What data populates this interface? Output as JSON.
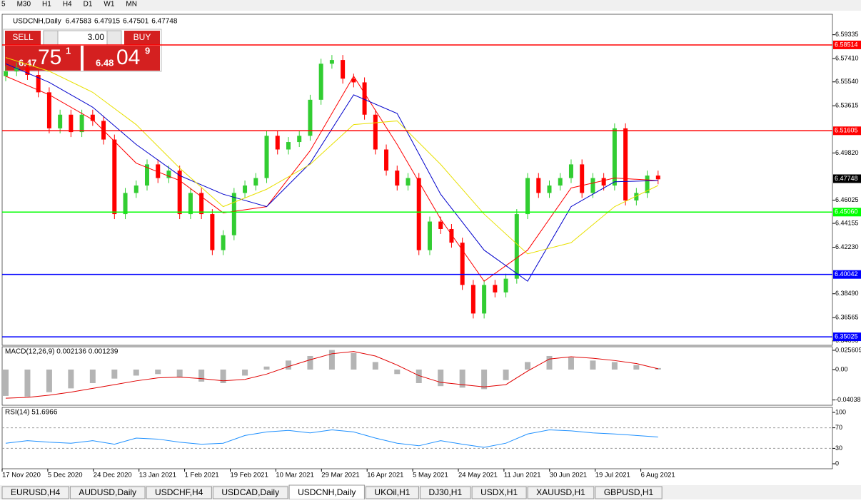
{
  "toolbar": {
    "timeframes": [
      "5",
      "M30",
      "H1",
      "H4",
      "D1",
      "W1",
      "MN"
    ]
  },
  "trade_panel": {
    "sell": "SELL",
    "buy": "BUY",
    "lot": "3.00",
    "sell_price": [
      "6.47",
      "75",
      "1"
    ],
    "buy_price": [
      "6.48",
      "04",
      "9"
    ]
  },
  "tabs": [
    "EURUSD,H4",
    "AUDUSD,Daily",
    "USDCHF,H4",
    "USDCAD,Daily",
    "USDCNH,Daily",
    "UKOil,H1",
    "DJ30,H1",
    "USDX,H1",
    "XAUUSD,H1",
    "GBPUSD,H1"
  ],
  "active_tab": "USDCNH,Daily",
  "chart_data": {
    "type": "candlestick",
    "symbol": "USDCNH,Daily",
    "quote": [
      6.47583,
      6.47915,
      6.47501,
      6.47748
    ],
    "ylim": [
      6.3434,
      6.6098
    ],
    "yticks": [
      6.59335,
      {
        "value": 6.5741,
        "label": "6.57410"
      },
      {
        "value": 6.5554,
        "label": "6.55540"
      },
      6.53615,
      {
        "value": 6.4982,
        "label": "6.49820"
      },
      6.46025,
      6.44155,
      {
        "value": 6.4223,
        "label": "6.42230"
      },
      {
        "value": 6.3849,
        "label": "6.38490"
      },
      6.36565,
      6.34695
    ],
    "x_labels": [
      "17 Nov 2020",
      "5 Dec 2020",
      "24 Dec 2020",
      "13 Jan 2021",
      "1 Feb 2021",
      "19 Feb 2021",
      "10 Mar 2021",
      "29 Mar 2021",
      "16 Apr 2021",
      "5 May 2021",
      "24 May 2021",
      "11 Jun 2021",
      "30 Jun 2021",
      "19 Jul 2021",
      "6 Aug 2021"
    ],
    "up_color": "#32cd32",
    "down_color": "#ff0000",
    "open": [
      6.56,
      6.564,
      6.567,
      6.561,
      6.547,
      6.518,
      6.529,
      6.515,
      6.529,
      6.524,
      6.509,
      6.449,
      6.466,
      6.472,
      6.489,
      6.478,
      6.484,
      6.449,
      6.466,
      6.449,
      6.42,
      6.432,
      6.466,
      6.472,
      6.478,
      6.512,
      6.501,
      6.507,
      6.512,
      6.541,
      6.57,
      6.573,
      6.558,
      6.555,
      6.529,
      6.501,
      6.484,
      6.472,
      6.478,
      6.42,
      6.443,
      6.437,
      6.426,
      6.392,
      6.369,
      6.392,
      6.386,
      6.397,
      6.449,
      6.478,
      6.466,
      6.472,
      6.478,
      6.489,
      6.466,
      6.478,
      6.472,
      6.518,
      6.46,
      6.466,
      6.48
    ],
    "high": [
      6.568,
      6.571,
      6.571,
      6.565,
      6.551,
      6.533,
      6.533,
      6.533,
      6.533,
      6.528,
      6.513,
      6.47,
      6.476,
      6.493,
      6.493,
      6.488,
      6.488,
      6.47,
      6.47,
      6.453,
      6.436,
      6.47,
      6.476,
      6.482,
      6.516,
      6.516,
      6.511,
      6.516,
      6.545,
      6.574,
      6.577,
      6.577,
      6.562,
      6.559,
      6.533,
      6.505,
      6.488,
      6.482,
      6.482,
      6.447,
      6.447,
      6.441,
      6.43,
      6.396,
      6.396,
      6.396,
      6.401,
      6.453,
      6.482,
      6.482,
      6.476,
      6.482,
      6.493,
      6.493,
      6.482,
      6.482,
      6.522,
      6.522,
      6.47,
      6.484,
      6.484
    ],
    "low": [
      6.556,
      6.56,
      6.557,
      6.543,
      6.514,
      6.514,
      6.511,
      6.511,
      6.52,
      6.505,
      6.445,
      6.445,
      6.462,
      6.468,
      6.474,
      6.474,
      6.445,
      6.445,
      6.445,
      6.416,
      6.416,
      6.428,
      6.462,
      6.468,
      6.474,
      6.497,
      6.497,
      6.503,
      6.508,
      6.537,
      6.566,
      6.554,
      6.551,
      6.525,
      6.497,
      6.48,
      6.468,
      6.468,
      6.416,
      6.416,
      6.433,
      6.422,
      6.388,
      6.365,
      6.365,
      6.382,
      6.382,
      6.393,
      6.445,
      6.462,
      6.462,
      6.468,
      6.474,
      6.462,
      6.462,
      6.468,
      6.468,
      6.456,
      6.456,
      6.462,
      6.473
    ],
    "close": [
      6.564,
      6.567,
      6.561,
      6.547,
      6.518,
      6.529,
      6.515,
      6.529,
      6.524,
      6.509,
      6.449,
      6.466,
      6.472,
      6.489,
      6.478,
      6.484,
      6.449,
      6.466,
      6.449,
      6.42,
      6.432,
      6.466,
      6.472,
      6.478,
      6.512,
      6.501,
      6.507,
      6.512,
      6.541,
      6.57,
      6.573,
      6.558,
      6.555,
      6.529,
      6.501,
      6.484,
      6.472,
      6.478,
      6.42,
      6.443,
      6.437,
      6.426,
      6.392,
      6.369,
      6.392,
      6.386,
      6.397,
      6.449,
      6.478,
      6.466,
      6.472,
      6.478,
      6.489,
      6.466,
      6.478,
      6.472,
      6.518,
      6.46,
      6.466,
      6.48,
      6.477
    ],
    "ma_index": [
      0,
      4,
      8,
      12,
      16,
      20,
      24,
      28,
      32,
      36,
      40,
      44,
      48,
      52,
      56,
      60
    ],
    "ma": [
      {
        "color": "#ff0000",
        "values": [
          6.56,
          6.545,
          6.525,
          6.49,
          6.476,
          6.45,
          6.455,
          6.5,
          6.56,
          6.505,
          6.445,
          6.395,
          6.42,
          6.47,
          6.478,
          6.476
        ]
      },
      {
        "color": "#0000cc",
        "values": [
          6.57,
          6.555,
          6.535,
          6.505,
          6.48,
          6.465,
          6.455,
          6.49,
          6.545,
          6.53,
          6.465,
          6.42,
          6.395,
          6.455,
          6.475,
          6.476
        ]
      },
      {
        "color": "#e8e000",
        "values": [
          6.575,
          6.564,
          6.547,
          6.521,
          6.486,
          6.455,
          6.469,
          6.489,
          6.521,
          6.524,
          6.489,
          6.449,
          6.417,
          6.426,
          6.455,
          6.472
        ]
      }
    ],
    "levels": [
      {
        "value": 6.58514,
        "label": "6.58514",
        "color": "#ff0000"
      },
      {
        "value": 6.51605,
        "label": "6.51605",
        "color": "#ff0000"
      },
      {
        "value": 6.4506,
        "label": "6.45060",
        "color": "#00ff00"
      },
      {
        "value": 6.40042,
        "label": "6.40042",
        "color": "#0000ff"
      },
      {
        "value": 6.35025,
        "label": "6.35025",
        "color": "#0000ff"
      }
    ],
    "current_price": 6.47748,
    "macd": {
      "title": "MACD(12,26,9) 0.002136 0.001239",
      "ylim": [
        -0.0474,
        0.0303
      ],
      "yticks": [
        0.025609,
        {
          "value": 0,
          "label": "0.00"
        },
        -0.04038
      ],
      "index": [
        0,
        2,
        4,
        6,
        8,
        10,
        12,
        14,
        16,
        18,
        20,
        22,
        24,
        26,
        28,
        30,
        32,
        34,
        36,
        38,
        40,
        42,
        44,
        46,
        48,
        50,
        52,
        54,
        56,
        58,
        60
      ],
      "histogram": [
        -0.035,
        -0.036,
        -0.03,
        -0.025,
        -0.018,
        -0.012,
        -0.008,
        -0.006,
        -0.01,
        -0.016,
        -0.018,
        -0.008,
        0.004,
        0.012,
        0.018,
        0.026,
        0.022,
        0.01,
        -0.006,
        -0.018,
        -0.022,
        -0.024,
        -0.026,
        -0.014,
        0.01,
        0.018,
        0.016,
        0.012,
        0.01,
        0.006,
        0.002
      ],
      "signal": [
        -0.038,
        -0.037,
        -0.034,
        -0.03,
        -0.025,
        -0.02,
        -0.015,
        -0.011,
        -0.01,
        -0.012,
        -0.015,
        -0.013,
        -0.006,
        0.004,
        0.013,
        0.021,
        0.024,
        0.018,
        0.006,
        -0.008,
        -0.017,
        -0.02,
        -0.023,
        -0.02,
        -0.002,
        0.014,
        0.017,
        0.015,
        0.012,
        0.008,
        0.001
      ]
    },
    "rsi": {
      "title": "RSI(14) 51.6966",
      "ylim": [
        -9.7,
        109.7
      ],
      "yticks": [
        100,
        70,
        30,
        0
      ],
      "levels": [
        70,
        30
      ],
      "index": [
        0,
        2,
        4,
        6,
        8,
        10,
        12,
        14,
        16,
        18,
        20,
        22,
        24,
        26,
        28,
        30,
        32,
        34,
        36,
        38,
        40,
        42,
        44,
        46,
        48,
        50,
        52,
        54,
        56,
        58,
        60
      ],
      "values": [
        40,
        45,
        42,
        40,
        45,
        38,
        50,
        48,
        42,
        38,
        40,
        55,
        62,
        65,
        60,
        66,
        62,
        50,
        40,
        35,
        45,
        38,
        32,
        40,
        58,
        66,
        64,
        60,
        58,
        55,
        52
      ]
    }
  }
}
